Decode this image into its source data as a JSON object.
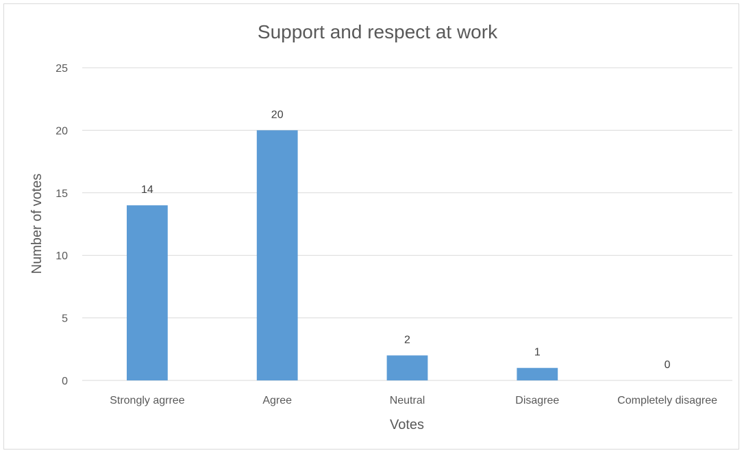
{
  "chart_data": {
    "type": "bar",
    "title": "Support and respect at work",
    "xlabel": "Votes",
    "ylabel": "Number of votes",
    "categories": [
      "Strongly agrree",
      "Agree",
      "Neutral",
      "Disagree",
      "Completely disagree"
    ],
    "values": [
      14,
      20,
      2,
      1,
      0
    ],
    "ylim": [
      0,
      25
    ],
    "yticks": [
      0,
      5,
      10,
      15,
      20,
      25
    ],
    "grid": true,
    "legend": "none",
    "data_labels": true,
    "bar_color": "#5B9BD5"
  }
}
